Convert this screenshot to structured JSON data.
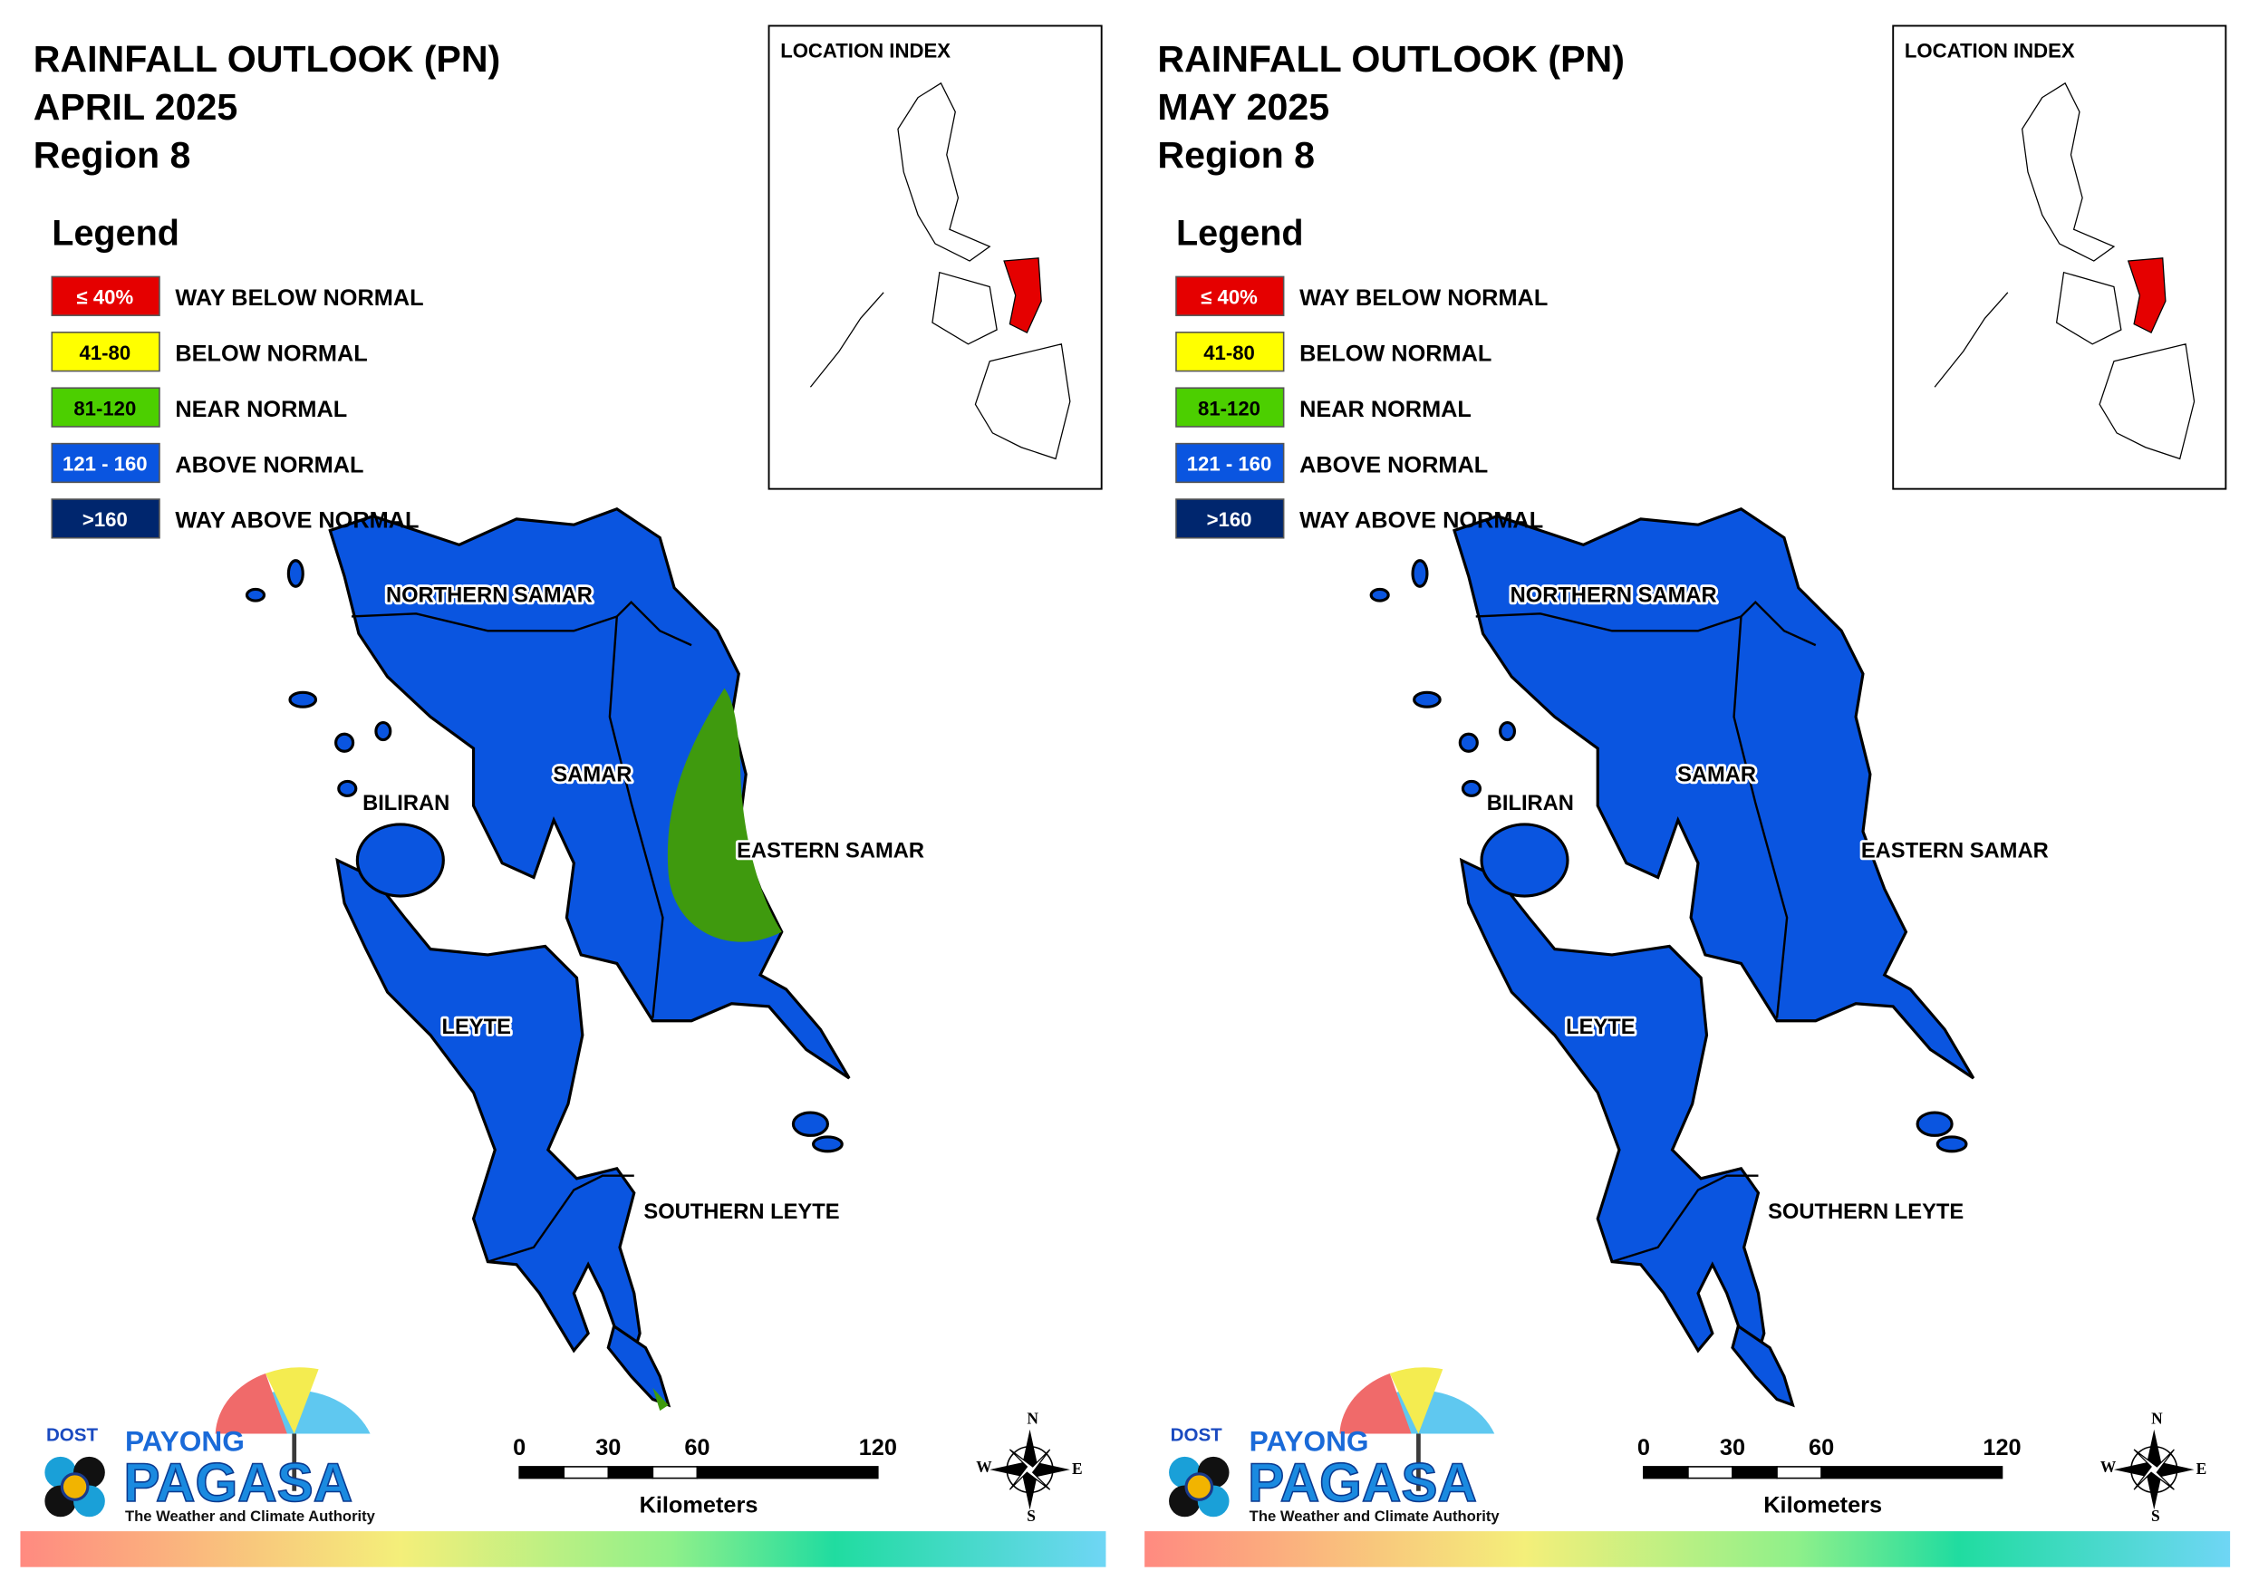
{
  "panels": [
    {
      "title": [
        "RAINFALL OUTLOOK (PN)",
        "APRIL 2025",
        "Region 8"
      ],
      "legend": {
        "title": "Legend",
        "items": [
          {
            "range": "≤ 40%",
            "label": "WAY BELOW NORMAL",
            "color": "#e50000"
          },
          {
            "range": "41-80",
            "label": "BELOW NORMAL",
            "color": "#ffff00"
          },
          {
            "range": "81-120",
            "label": "NEAR NORMAL",
            "color": "#4ccf00"
          },
          {
            "range": "121 - 160",
            "label": "ABOVE NORMAL",
            "color": "#0a55e0"
          },
          {
            "range": ">160",
            "label": "WAY ABOVE NORMAL",
            "color": "#00266e"
          }
        ]
      },
      "location_index": "LOCATION INDEX",
      "provinces": [
        "NORTHERN SAMAR",
        "SAMAR",
        "BILIRAN",
        "EASTERN SAMAR",
        "LEYTE",
        "SOUTHERN LEYTE"
      ],
      "scale": {
        "ticks": [
          "0",
          "30",
          "60",
          "120"
        ],
        "unit": "Kilometers"
      },
      "compass": [
        "N",
        "E",
        "S",
        "W"
      ],
      "logo": {
        "agency": "DOST",
        "brand": "PAYONG",
        "name": "PAGASA",
        "tagline": "The Weather and Climate Authority"
      }
    },
    {
      "title": [
        "RAINFALL OUTLOOK (PN)",
        "MAY 2025",
        "Region 8"
      ],
      "legend": {
        "title": "Legend",
        "items": [
          {
            "range": "≤ 40%",
            "label": "WAY BELOW NORMAL",
            "color": "#e50000"
          },
          {
            "range": "41-80",
            "label": "BELOW NORMAL",
            "color": "#ffff00"
          },
          {
            "range": "81-120",
            "label": "NEAR NORMAL",
            "color": "#4ccf00"
          },
          {
            "range": "121 - 160",
            "label": "ABOVE NORMAL",
            "color": "#0a55e0"
          },
          {
            "range": ">160",
            "label": "WAY ABOVE NORMAL",
            "color": "#00266e"
          }
        ]
      },
      "location_index": "LOCATION INDEX",
      "provinces": [
        "NORTHERN SAMAR",
        "SAMAR",
        "BILIRAN",
        "EASTERN SAMAR",
        "LEYTE",
        "SOUTHERN LEYTE"
      ],
      "scale": {
        "ticks": [
          "0",
          "30",
          "60",
          "120"
        ],
        "unit": "Kilometers"
      },
      "compass": [
        "N",
        "E",
        "S",
        "W"
      ],
      "logo": {
        "agency": "DOST",
        "brand": "PAYONG",
        "name": "PAGASA",
        "tagline": "The Weather and Climate Authority"
      }
    }
  ]
}
